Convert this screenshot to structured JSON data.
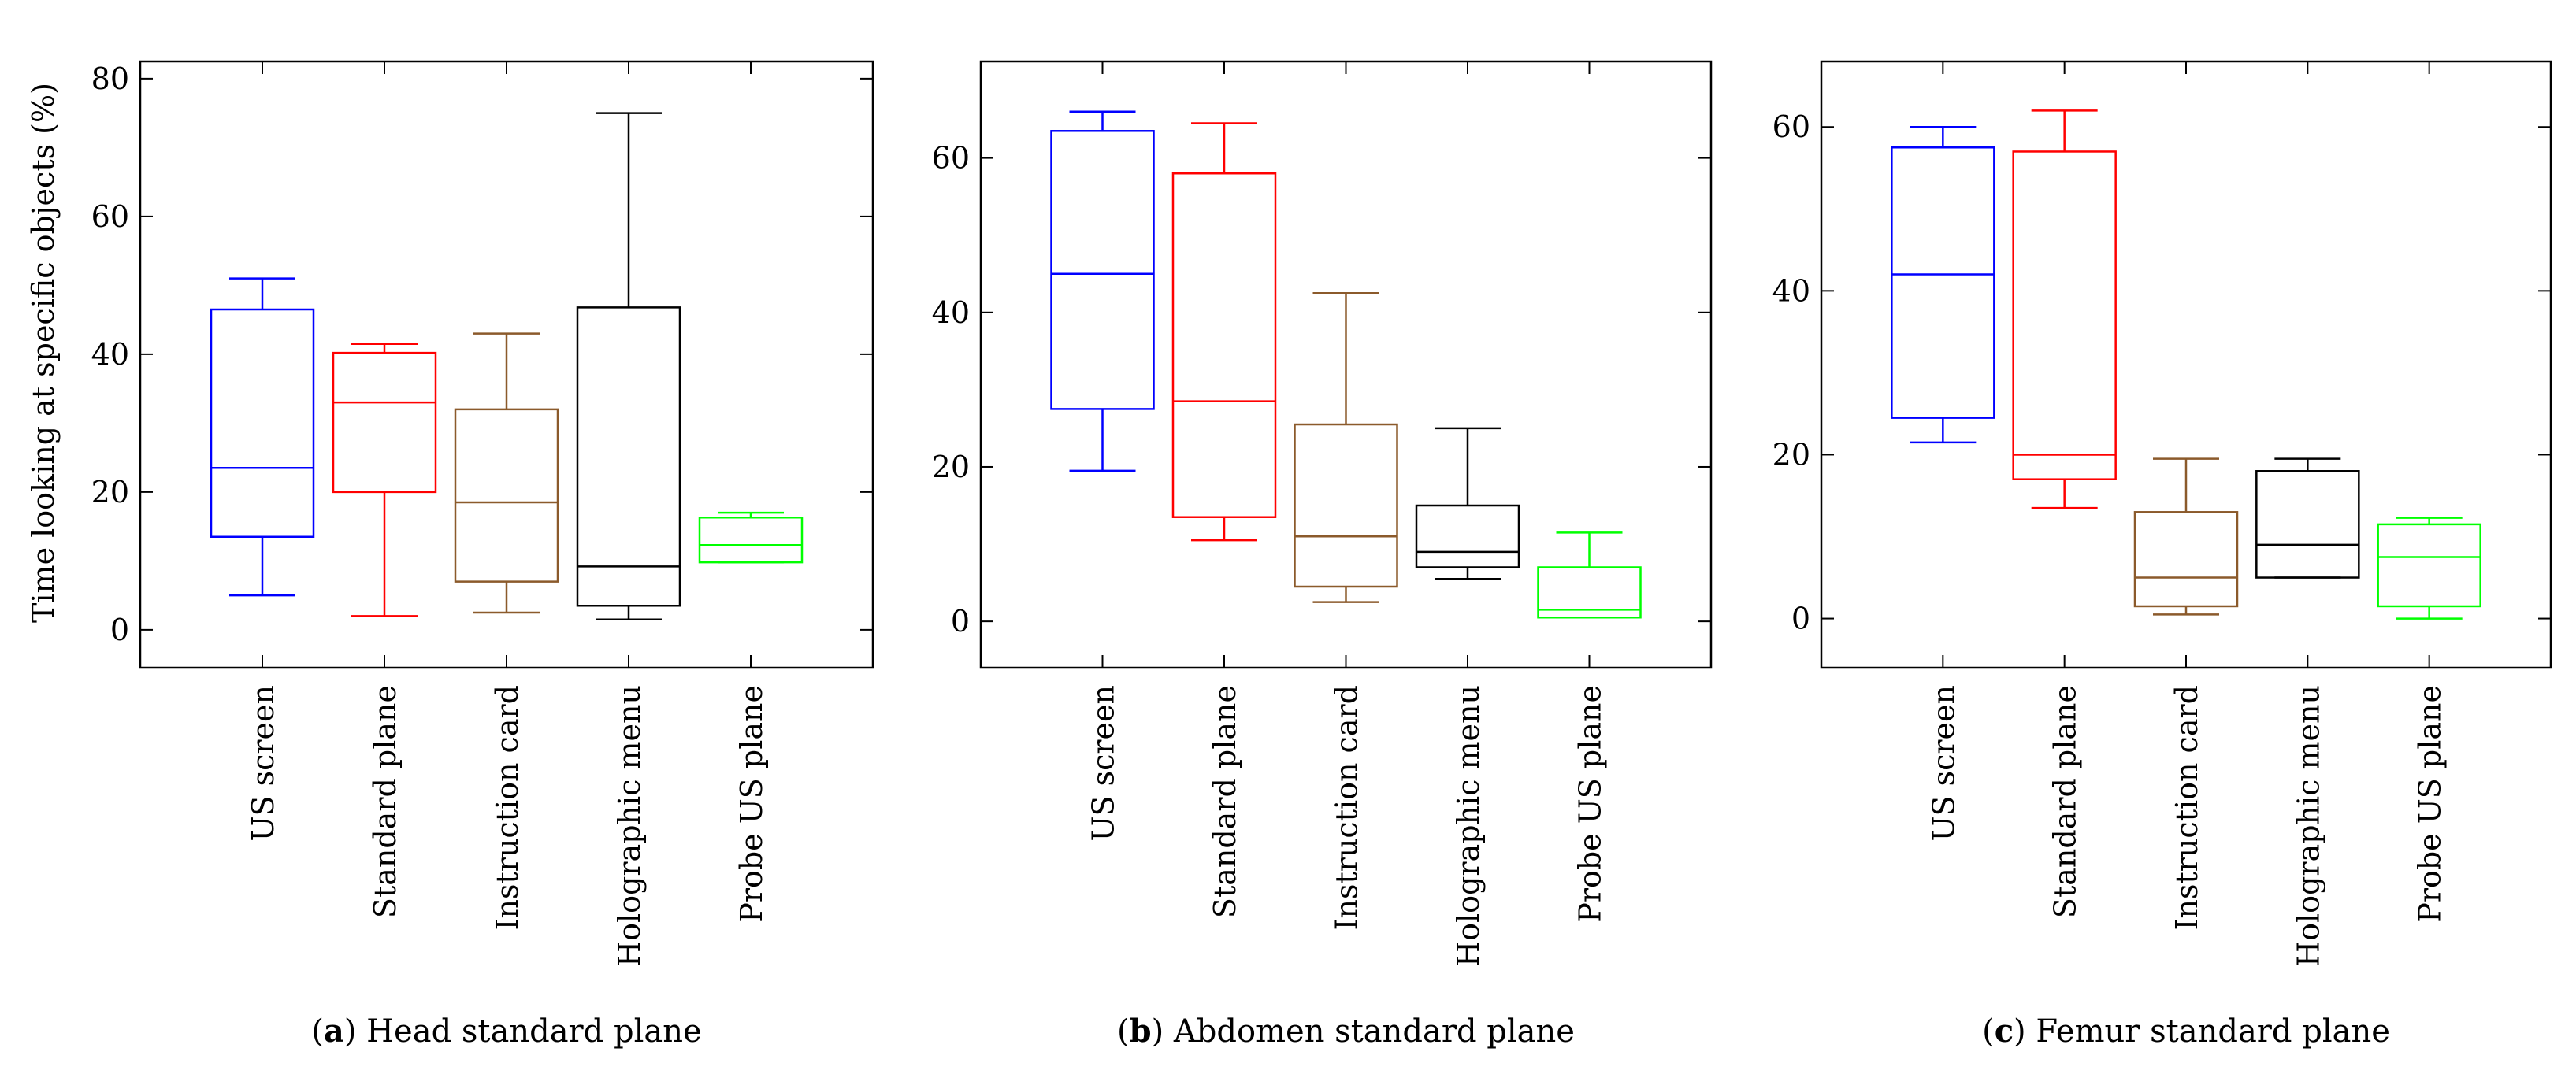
{
  "figure": {
    "ylabel": "Time looking at specific objects (%)"
  },
  "chart_data": [
    {
      "type": "box",
      "panel_letter": "a",
      "caption": "Head standard plane",
      "categories": [
        "US screen",
        "Standard plane",
        "Instruction card",
        "Holographic menu",
        "Probe US plane"
      ],
      "colors": [
        "#0000ff",
        "#ff0000",
        "#8b5a2b",
        "#000000",
        "#00ff00"
      ],
      "yticks": [
        0,
        20,
        40,
        60,
        80
      ],
      "ylim": [
        -5.5,
        82.5
      ],
      "boxes": [
        {
          "min": 5,
          "q1": 13.5,
          "median": 23.5,
          "q3": 46.5,
          "max": 51
        },
        {
          "min": 2,
          "q1": 20,
          "median": 33,
          "q3": 40.2,
          "max": 41.5
        },
        {
          "min": 2.5,
          "q1": 7,
          "median": 18.5,
          "q3": 32,
          "max": 43
        },
        {
          "min": 1.5,
          "q1": 3.5,
          "median": 9.2,
          "q3": 46.8,
          "max": 75
        },
        {
          "min": 9.8,
          "q1": 9.8,
          "median": 12.3,
          "q3": 16.3,
          "max": 17
        }
      ]
    },
    {
      "type": "box",
      "panel_letter": "b",
      "caption": "Abdomen standard plane",
      "categories": [
        "US screen",
        "Standard plane",
        "Instruction card",
        "Holographic menu",
        "Probe US plane"
      ],
      "colors": [
        "#0000ff",
        "#ff0000",
        "#8b5a2b",
        "#000000",
        "#00ff00"
      ],
      "yticks": [
        0,
        20,
        40,
        60
      ],
      "ylim": [
        -6,
        72.5
      ],
      "boxes": [
        {
          "min": 19.5,
          "q1": 27.5,
          "median": 45,
          "q3": 63.5,
          "max": 66
        },
        {
          "min": 10.5,
          "q1": 13.5,
          "median": 28.5,
          "q3": 58,
          "max": 64.5
        },
        {
          "min": 2.5,
          "q1": 4.5,
          "median": 11,
          "q3": 25.5,
          "max": 42.5
        },
        {
          "min": 5.5,
          "q1": 7,
          "median": 9,
          "q3": 15,
          "max": 25
        },
        {
          "min": 0.5,
          "q1": 0.5,
          "median": 1.5,
          "q3": 7,
          "max": 11.5
        }
      ]
    },
    {
      "type": "box",
      "panel_letter": "c",
      "caption": "Femur standard plane",
      "categories": [
        "US screen",
        "Standard plane",
        "Instruction card",
        "Holographic menu",
        "Probe US plane"
      ],
      "colors": [
        "#0000ff",
        "#ff0000",
        "#8b5a2b",
        "#000000",
        "#00ff00"
      ],
      "yticks": [
        0,
        20,
        40,
        60
      ],
      "ylim": [
        -6,
        68
      ],
      "boxes": [
        {
          "min": 21.5,
          "q1": 24.5,
          "median": 42,
          "q3": 57.5,
          "max": 60
        },
        {
          "min": 13.5,
          "q1": 17,
          "median": 20,
          "q3": 57,
          "max": 62
        },
        {
          "min": 0.5,
          "q1": 1.5,
          "median": 5,
          "q3": 13,
          "max": 19.5
        },
        {
          "min": 5,
          "q1": 5,
          "median": 9,
          "q3": 18,
          "max": 19.5
        },
        {
          "min": 0,
          "q1": 1.5,
          "median": 7.5,
          "q3": 11.5,
          "max": 12.3
        }
      ]
    }
  ]
}
